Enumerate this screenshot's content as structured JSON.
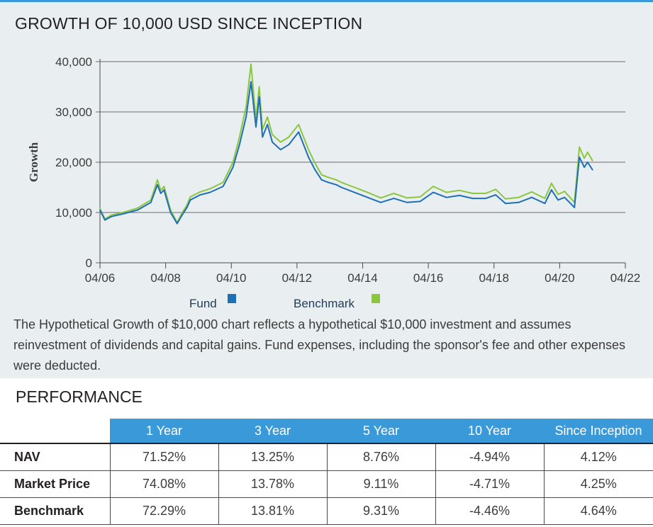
{
  "chart_data": {
    "type": "line",
    "title": "GROWTH OF 10,000 USD SINCE INCEPTION",
    "xlabel": "",
    "ylabel": "Growth",
    "ylim": [
      0,
      40000
    ],
    "xlim": [
      2006.25,
      2022.25
    ],
    "y_ticks": [
      0,
      10000,
      20000,
      30000,
      40000
    ],
    "y_tick_labels": [
      "0",
      "10,000",
      "20,000",
      "30,000",
      "40,000"
    ],
    "x_ticks": [
      2006.25,
      2008.25,
      2010.25,
      2012.25,
      2014.25,
      2016.25,
      2018.25,
      2020.25,
      2022.25
    ],
    "x_tick_labels": [
      "04/06",
      "04/08",
      "04/10",
      "04/12",
      "04/14",
      "04/16",
      "04/18",
      "04/20",
      "04/22"
    ],
    "grid": "horizontal",
    "series": [
      {
        "name": "Fund",
        "color": "#1f6fb5",
        "x": [
          2006.25,
          2006.4,
          2006.6,
          2007.0,
          2007.4,
          2007.8,
          2008.0,
          2008.1,
          2008.2,
          2008.4,
          2008.6,
          2008.75,
          2008.9,
          2009.0,
          2009.3,
          2009.6,
          2010.0,
          2010.3,
          2010.5,
          2010.7,
          2010.85,
          2011.0,
          2011.1,
          2011.2,
          2011.35,
          2011.5,
          2011.75,
          2012.0,
          2012.3,
          2012.6,
          2012.8,
          2013.0,
          2013.2,
          2013.45,
          2013.6,
          2014.0,
          2014.4,
          2014.8,
          2015.2,
          2015.6,
          2016.0,
          2016.4,
          2016.8,
          2017.2,
          2017.6,
          2018.0,
          2018.3,
          2018.6,
          2019.0,
          2019.4,
          2019.8,
          2020.0,
          2020.2,
          2020.4,
          2020.7,
          2020.85,
          2021.0,
          2021.1,
          2021.25
        ],
        "values": [
          10500,
          8500,
          9200,
          9800,
          10500,
          12000,
          15500,
          13800,
          14500,
          10000,
          7800,
          9500,
          11000,
          12500,
          13500,
          14000,
          15200,
          19000,
          23500,
          29000,
          36000,
          27000,
          33000,
          25000,
          27500,
          24000,
          22500,
          23500,
          26000,
          21000,
          18500,
          16500,
          16000,
          15500,
          15000,
          14000,
          13000,
          12000,
          12800,
          12000,
          12200,
          14000,
          13000,
          13400,
          12800,
          12800,
          13500,
          11800,
          12000,
          13000,
          11800,
          14500,
          12500,
          13000,
          11000,
          21000,
          19000,
          20000,
          18500
        ]
      },
      {
        "name": "Benchmark",
        "color": "#8cc63f",
        "x": [
          2006.25,
          2006.4,
          2006.6,
          2007.0,
          2007.4,
          2007.8,
          2008.0,
          2008.1,
          2008.2,
          2008.4,
          2008.6,
          2008.75,
          2008.9,
          2009.0,
          2009.3,
          2009.6,
          2010.0,
          2010.3,
          2010.5,
          2010.7,
          2010.85,
          2011.0,
          2011.1,
          2011.2,
          2011.35,
          2011.5,
          2011.75,
          2012.0,
          2012.3,
          2012.6,
          2012.8,
          2013.0,
          2013.2,
          2013.45,
          2013.6,
          2014.0,
          2014.4,
          2014.8,
          2015.2,
          2015.6,
          2016.0,
          2016.4,
          2016.8,
          2017.2,
          2017.6,
          2018.0,
          2018.3,
          2018.6,
          2019.0,
          2019.4,
          2019.8,
          2020.0,
          2020.2,
          2020.4,
          2020.7,
          2020.85,
          2021.0,
          2021.1,
          2021.25
        ],
        "values": [
          10800,
          8700,
          9500,
          10100,
          10900,
          12500,
          16500,
          14400,
          15200,
          10500,
          8000,
          9900,
          11500,
          13100,
          14100,
          14700,
          16000,
          20000,
          25000,
          31000,
          39500,
          28500,
          35000,
          26500,
          29000,
          25500,
          24000,
          25000,
          27500,
          22500,
          19800,
          17500,
          17000,
          16500,
          16000,
          15000,
          14000,
          12900,
          13800,
          12900,
          13100,
          15200,
          14000,
          14400,
          13800,
          13800,
          14600,
          12700,
          13000,
          14100,
          12800,
          15800,
          13600,
          14200,
          12000,
          23000,
          20800,
          22000,
          20300
        ]
      }
    ]
  },
  "legend": {
    "fund_label": "Fund",
    "benchmark_label": "Benchmark"
  },
  "note": "The Hypothetical Growth of $10,000 chart reflects a hypothetical $10,000 investment and assumes reinvestment of dividends and capital gains.  Fund expenses, including the sponsor's fee and other expenses were deducted.",
  "performance": {
    "title": "PERFORMANCE",
    "columns": [
      "1 Year",
      "3 Year",
      "5 Year",
      "10 Year",
      "Since Inception"
    ],
    "rows": [
      {
        "label": "NAV",
        "values": [
          "71.52%",
          "13.25%",
          "8.76%",
          "-4.94%",
          "4.12%"
        ]
      },
      {
        "label": "Market Price",
        "values": [
          "74.08%",
          "13.78%",
          "9.11%",
          "-4.71%",
          "4.25%"
        ]
      },
      {
        "label": "Benchmark",
        "values": [
          "72.29%",
          "13.81%",
          "9.31%",
          "-4.46%",
          "4.64%"
        ]
      }
    ]
  }
}
